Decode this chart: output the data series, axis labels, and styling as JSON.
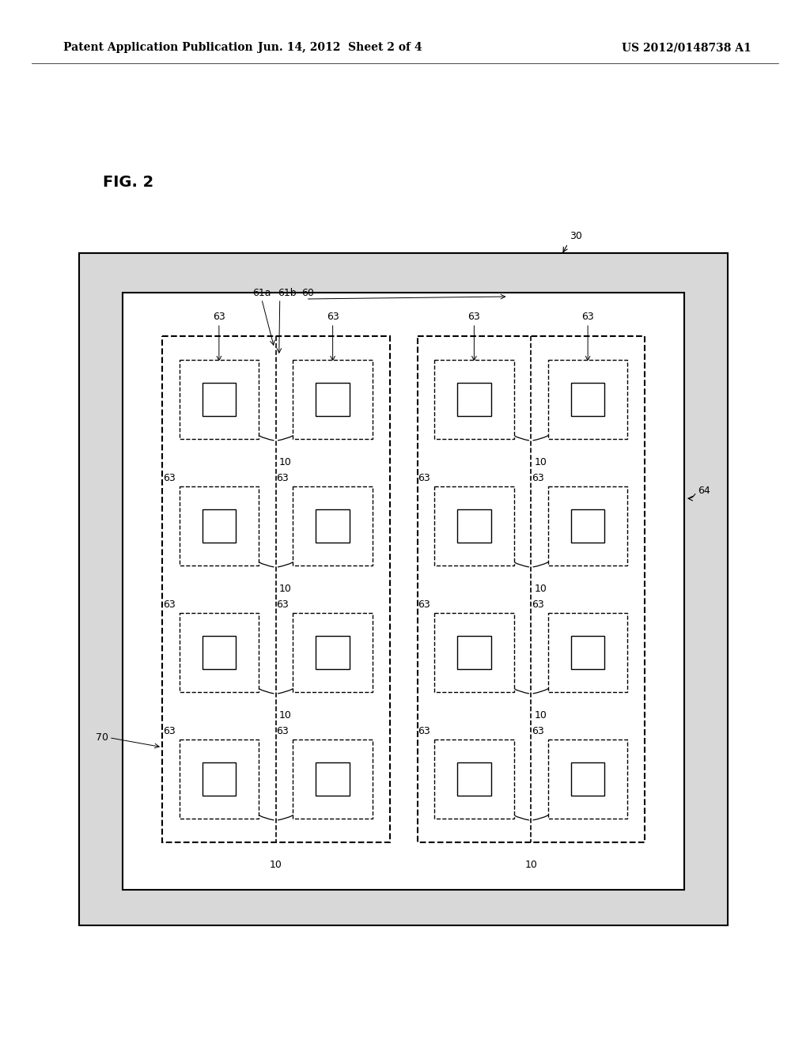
{
  "bg_color": "#ffffff",
  "header_left": "Patent Application Publication",
  "header_mid": "Jun. 14, 2012  Sheet 2 of 4",
  "header_right": "US 2012/0148738 A1",
  "fig_label": "FIG. 2",
  "font_size_header": 10,
  "font_size_label": 9,
  "font_size_fig": 14,
  "outer_rect_gray": "#d8d8d8",
  "line_color": "#000000"
}
